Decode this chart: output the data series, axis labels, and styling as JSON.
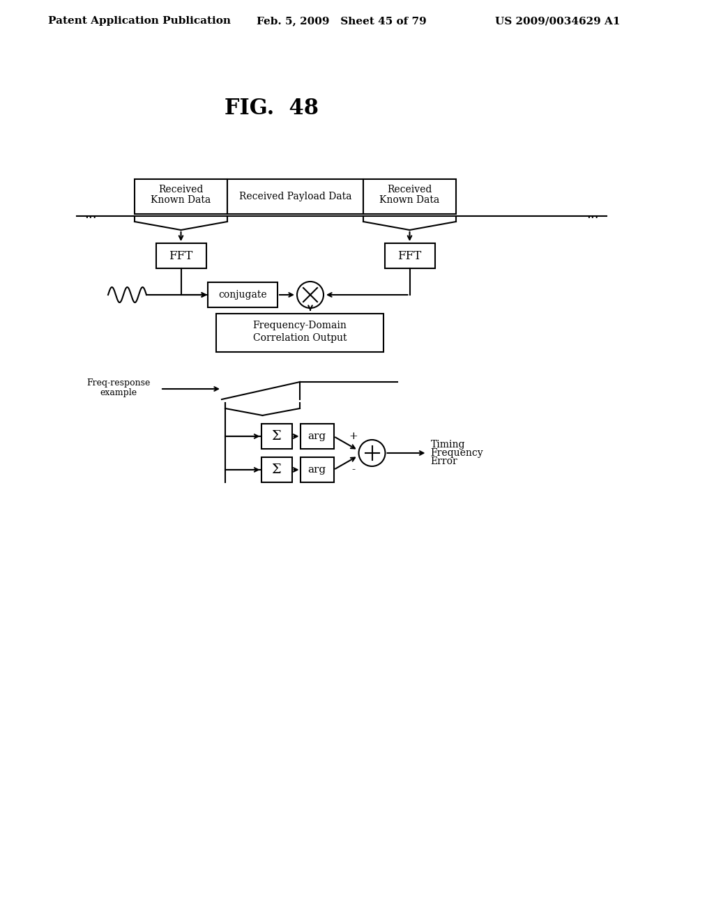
{
  "title": "FIG.  48",
  "header_left": "Patent Application Publication",
  "header_mid": "Feb. 5, 2009   Sheet 45 of 79",
  "header_right": "US 2009/0034629 A1",
  "bg_color": "#ffffff",
  "line_color": "#000000",
  "text_color": "#000000"
}
